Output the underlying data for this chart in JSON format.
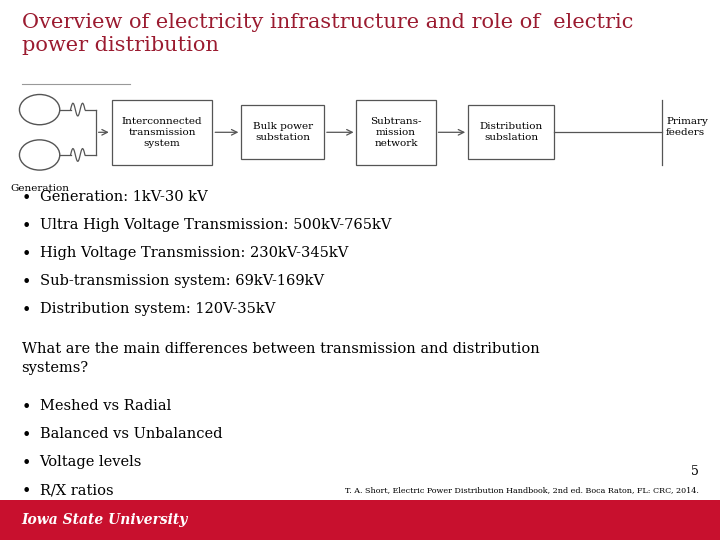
{
  "title": "Overview of electricity infrastructure and role of  electric\npower distribution",
  "title_color": "#9B1B30",
  "title_fontsize": 15,
  "bg_color": "#FFFFFF",
  "bullet_items_1": [
    "Generation: 1kV-30 kV",
    "Ultra High Voltage Transmission: 500kV-765kV",
    "High Voltage Transmission: 230kV-345kV",
    "Sub-transmission system: 69kV-169kV",
    "Distribution system: 120V-35kV"
  ],
  "section2_header": "What are the main differences between transmission and distribution\nsystems?",
  "bullet_items_2": [
    "Meshed vs Radial",
    "Balanced vs Unbalanced",
    "Voltage levels",
    "R/X ratios"
  ],
  "footer_text": "Iowa State University",
  "footer_bg": "#C8102E",
  "footer_text_color": "#FFFFFF",
  "page_number": "5",
  "reference": "T. A. Short, Electric Power Distribution Handbook, 2nd ed. Boca Raton, FL: CRC, 2014.",
  "text_color": "#000000",
  "border_color": "#555555",
  "bullet_fontsize": 10.5,
  "section2_fontsize": 10.5
}
